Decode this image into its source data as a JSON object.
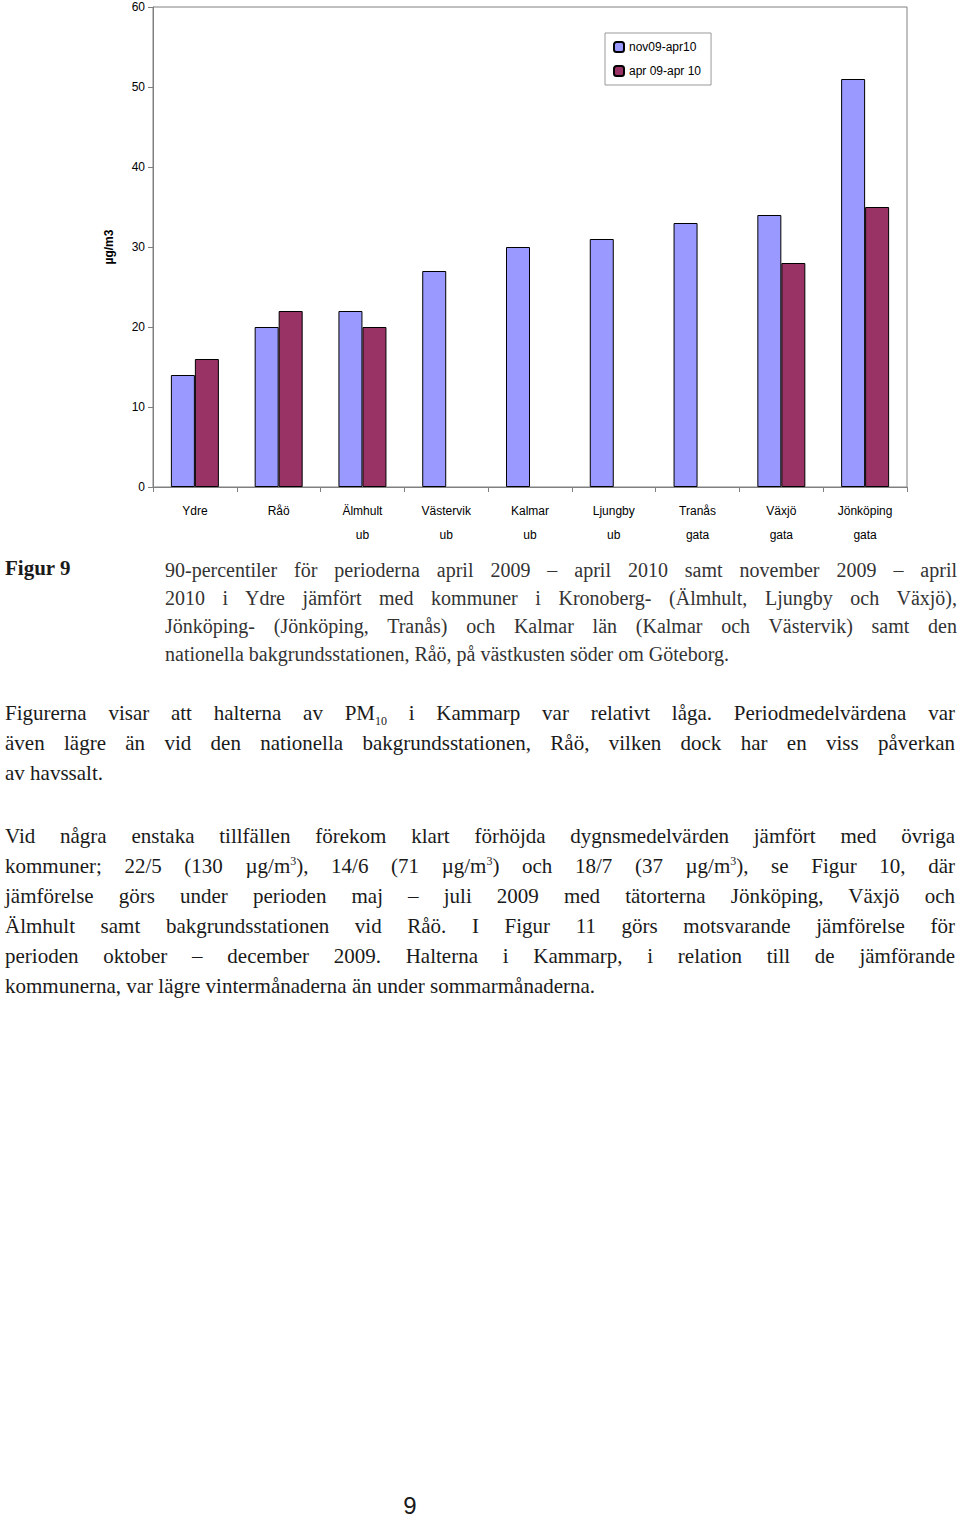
{
  "chart_data": {
    "type": "bar",
    "categories": [
      "Ydre",
      "Råö",
      "Älmhult",
      "Västervik",
      "Kalmar",
      "Ljungby",
      "Tranås",
      "Växjö",
      "Jönköping"
    ],
    "subcategories": [
      null,
      null,
      "ub",
      "ub",
      "ub",
      "ub",
      "gata",
      "gata",
      "gata"
    ],
    "y_label": "µg/m3",
    "series": [
      {
        "name": "nov09-apr10",
        "color": "#9999ff",
        "values": [
          14,
          20,
          22,
          27,
          30,
          31,
          33,
          34,
          51
        ]
      },
      {
        "name": "apr 09-apr 10",
        "color": "#993366",
        "values": [
          16,
          22,
          20,
          null,
          null,
          null,
          null,
          28,
          35
        ]
      }
    ],
    "ylim": [
      0,
      60
    ],
    "yticks": [
      0,
      10,
      20,
      30,
      40,
      50,
      60
    ],
    "grid": false,
    "legend": "top-right"
  },
  "figure": {
    "label": "Figur 9",
    "caption": [
      [
        "90-percentiler för perioderna april 2009 – april 2010 samt november 2009 – april"
      ],
      [
        "2010 i Ydre jämfört med kommuner i Kronoberg- (Älmhult, Ljungby och Växjö),"
      ],
      [
        "Jönköping- (Jönköping, Tranås) och Kalmar län (Kalmar och Västervik) samt den"
      ],
      [
        "nationella bakgrundsstationen, Råö, på västkusten söder om Göteborg."
      ]
    ]
  },
  "paragraphs": [
    [
      [
        "Figurerna visar att halterna av PM",
        {
          "sub": "10"
        },
        " i Kammarp var relativt låga. Periodmedelvärdena var"
      ],
      [
        "även lägre än vid den nationella bakgrundsstationen, Råö, vilken dock har en viss påverkan"
      ],
      [
        "av havssalt."
      ]
    ],
    [
      [
        "Vid några enstaka tillfällen förekom klart förhöjda dygnsmedelvärden jämfört med övriga"
      ],
      [
        "kommuner; 22/5 (130 µg/m",
        {
          "sup": "3"
        },
        "), 14/6 (71 µg/m",
        {
          "sup": "3"
        },
        ") och 18/7 (37 µg/m",
        {
          "sup": "3"
        },
        "), se Figur 10, där"
      ],
      [
        "jämförelse görs under perioden maj – juli 2009 med tätorterna Jönköping, Växjö och"
      ],
      [
        "Älmhult samt bakgrundsstationen vid Råö. I Figur 11 görs motsvarande jämförelse för"
      ],
      [
        "perioden oktober – december 2009. Halterna i Kammarp, i relation till de jämförande"
      ],
      [
        "kommunerna, var lägre vintermånaderna än under sommarmånaderna."
      ]
    ]
  ],
  "page_number": "9"
}
